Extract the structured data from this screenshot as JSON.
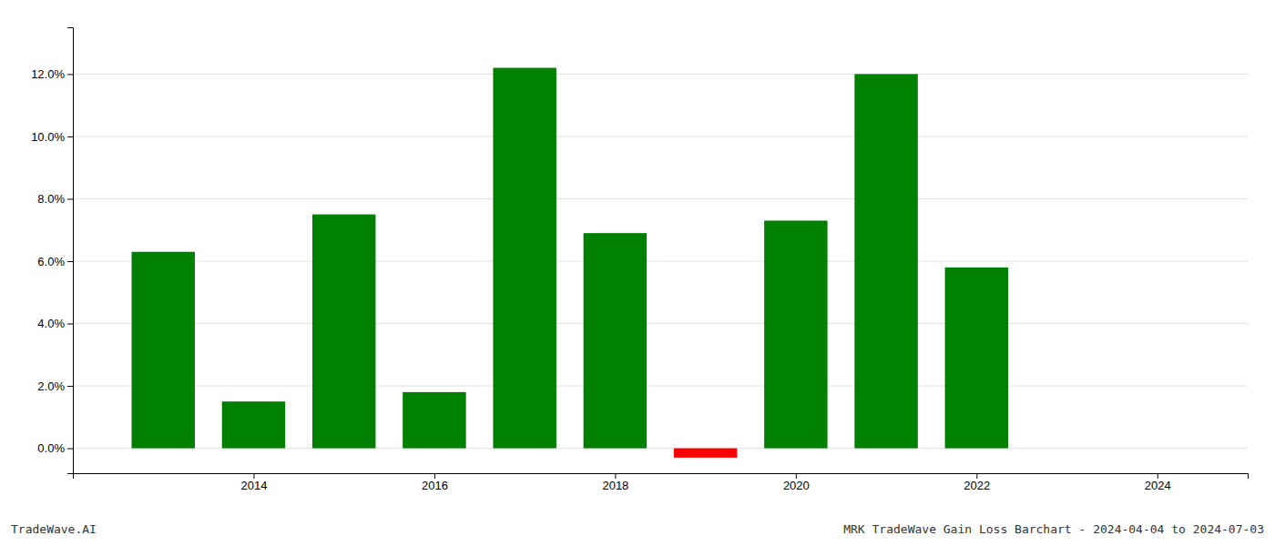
{
  "chart_data": {
    "type": "bar",
    "x": [
      2013,
      2014,
      2015,
      2016,
      2017,
      2018,
      2019,
      2020,
      2021,
      2022,
      2023
    ],
    "values": [
      0.063,
      0.015,
      0.075,
      0.018,
      0.122,
      0.069,
      -0.003,
      0.073,
      0.12,
      0.058,
      0.0
    ],
    "colors": [
      "#008000",
      "#008000",
      "#008000",
      "#008000",
      "#008000",
      "#008000",
      "#ff0000",
      "#008000",
      "#008000",
      "#008000",
      "#008000"
    ],
    "xlim": [
      2012.0,
      2025.0
    ],
    "ylim": [
      -0.008,
      0.135
    ],
    "xticks": [
      2014,
      2016,
      2018,
      2020,
      2022,
      2024
    ],
    "yticks": [
      {
        "value": 0.0,
        "label": "0.0%"
      },
      {
        "value": 0.02,
        "label": "2.0%"
      },
      {
        "value": 0.04,
        "label": "4.0%"
      },
      {
        "value": 0.06,
        "label": "6.0%"
      },
      {
        "value": 0.08,
        "label": "8.0%"
      },
      {
        "value": 0.1,
        "label": "10.0%"
      },
      {
        "value": 0.12,
        "label": "12.0%"
      }
    ],
    "grid": true,
    "annotations": [
      "TradeWave.AI",
      "MRK TradeWave Gain Loss Barchart - 2024-04-04 to 2024-07-03"
    ]
  }
}
